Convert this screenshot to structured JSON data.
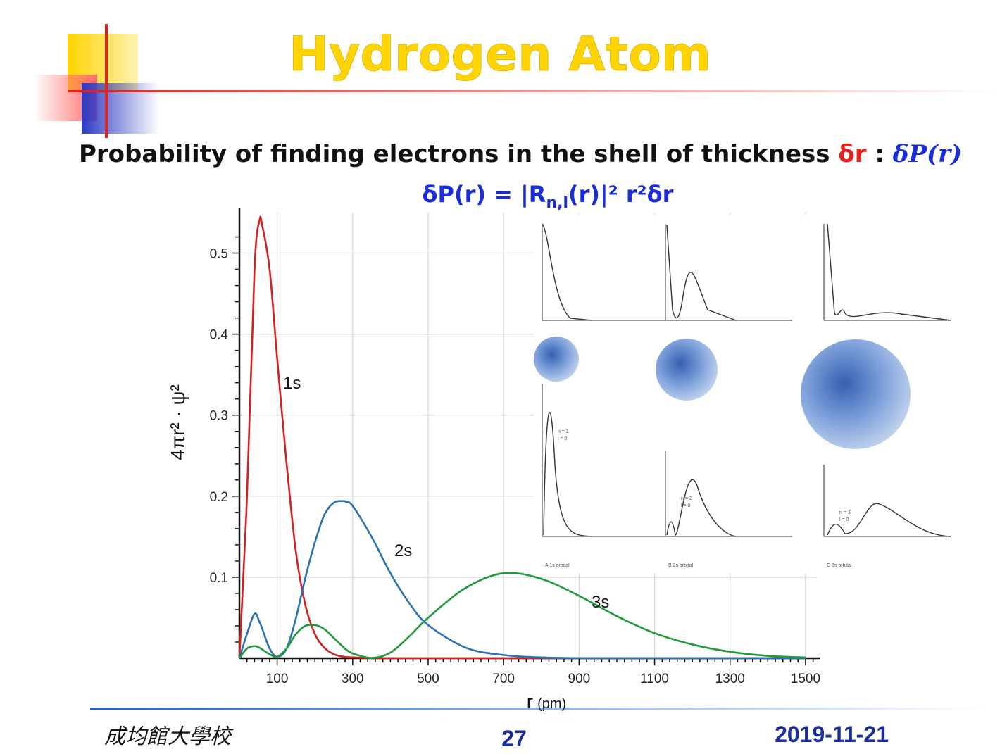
{
  "slide": {
    "title": "Hydrogen Atom",
    "subtitle_prefix": "Probability of finding electrons in the shell of thickness ",
    "subtitle_symbol": "δr",
    "subtitle_sep": " : ",
    "subtitle_math": "δP(r)",
    "formula": "δP(r) = |Rn,l(r)|² r²δr",
    "formula_parts": {
      "a": "δP(r) = |R",
      "sub": "n,l",
      "b": "(r)|² r²δr"
    },
    "footer_school": "成均館大學校",
    "footer_page": "27",
    "footer_date": "2019-11-21",
    "colors": {
      "title": "#ffd400",
      "accent_red": "#e8201c",
      "accent_blue": "#1a2bd8",
      "square_yellow": "#ffd400",
      "square_blue": "#2c3ac4"
    }
  },
  "chart_data": {
    "type": "line",
    "title": "",
    "xlabel": "r",
    "xlabel_unit": "(pm)",
    "ylabel": "4πr² · ψ²",
    "xlim": [
      0,
      1530
    ],
    "ylim": [
      0,
      0.55
    ],
    "xticks": [
      100,
      300,
      500,
      700,
      900,
      1100,
      1300,
      1500
    ],
    "yticks": [
      0.1,
      0.2,
      0.3,
      0.4,
      0.5
    ],
    "grid": true,
    "x": [
      0,
      20,
      40,
      53,
      60,
      80,
      100,
      125,
      150,
      175,
      200,
      225,
      250,
      275,
      282,
      300,
      350,
      400,
      450,
      500,
      600,
      700,
      800,
      900,
      1000,
      1100,
      1200,
      1300,
      1400,
      1500
    ],
    "series": [
      {
        "name": "1s",
        "color": "#d42020",
        "values": [
          0,
          0.2,
          0.48,
          0.54,
          0.535,
          0.48,
          0.37,
          0.24,
          0.13,
          0.065,
          0.03,
          0.013,
          0.005,
          0.002,
          0.0015,
          0.001,
          0.0002,
          0,
          0,
          0,
          0,
          0,
          0,
          0,
          0,
          0,
          0,
          0,
          0,
          0
        ]
      },
      {
        "name": "2s",
        "color": "#2a72b4",
        "values": [
          0,
          0.03,
          0.055,
          0.045,
          0.037,
          0.012,
          0.002,
          0.012,
          0.05,
          0.1,
          0.143,
          0.177,
          0.192,
          0.194,
          0.193,
          0.188,
          0.15,
          0.105,
          0.068,
          0.041,
          0.013,
          0.004,
          0.001,
          0,
          0,
          0,
          0,
          0,
          0,
          0
        ]
      },
      {
        "name": "3s",
        "color": "#1f9a3c",
        "values": [
          0,
          0.012,
          0.015,
          0.013,
          0.011,
          0.005,
          0.002,
          0.012,
          0.03,
          0.04,
          0.041,
          0.036,
          0.025,
          0.014,
          0.011,
          0.006,
          0.0004,
          0.007,
          0.027,
          0.05,
          0.087,
          0.105,
          0.098,
          0.077,
          0.052,
          0.031,
          0.017,
          0.008,
          0.003,
          0.001
        ]
      }
    ],
    "inset": {
      "panels": [
        {
          "label": "A  1s orbital",
          "n": "n = 1",
          "l": "l = 0"
        },
        {
          "label": "B  2s orbital",
          "n": "n = 2",
          "l": "l = 0"
        },
        {
          "label": "C  3s orbital",
          "n": "n = 3",
          "l": "l = 0"
        }
      ]
    }
  }
}
